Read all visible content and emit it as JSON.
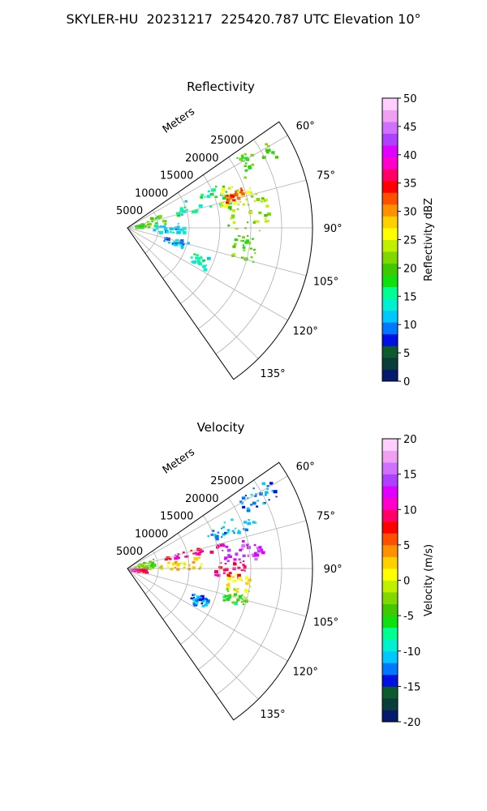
{
  "title": "SKYLER-HU  20231217  225420.787 UTC Elevation 10°",
  "chart_data": [
    {
      "type": "heatmap",
      "subtype": "polar-sector-radar-ppi",
      "title": "Reflectivity",
      "radial_label": "Meters",
      "range_ticks": [
        5000,
        10000,
        15000,
        20000,
        25000
      ],
      "range_max": 30000,
      "azimuth_ticks": [
        "60°",
        "75°",
        "90°",
        "105°",
        "120°",
        "135°"
      ],
      "azimuth_range": [
        55,
        145
      ],
      "colorbar": {
        "label": "Reflectivity dBZ",
        "min": 0,
        "max": 50,
        "ticks": [
          0,
          5,
          10,
          15,
          20,
          25,
          30,
          35,
          40,
          45,
          50
        ],
        "colors": [
          "#061a6b",
          "#0a3d3a",
          "#0c5a2e",
          "#0010e0",
          "#0077ff",
          "#00c8ff",
          "#00f0d0",
          "#00ff90",
          "#10e010",
          "#40c800",
          "#80d800",
          "#c0f000",
          "#ffff00",
          "#ffd000",
          "#ff9000",
          "#ff5000",
          "#ff0000",
          "#ff0066",
          "#ff00cc",
          "#e000ff",
          "#b040ff",
          "#d070ff",
          "#f0a0f0",
          "#ffd0ff"
        ]
      },
      "echoes": [
        {
          "az_from": 57,
          "az_to": 64,
          "r_from": 21000,
          "r_to": 27000,
          "value": 20
        },
        {
          "az_from": 64,
          "az_to": 76,
          "r_from": 8000,
          "r_to": 17000,
          "value": 15
        },
        {
          "az_from": 66,
          "az_to": 77,
          "r_from": 15000,
          "r_to": 22000,
          "value": 24
        },
        {
          "az_from": 70,
          "az_to": 75,
          "r_from": 16500,
          "r_to": 19500,
          "value": 32
        },
        {
          "az_from": 77,
          "az_to": 91,
          "r_from": 16000,
          "r_to": 23000,
          "value": 22
        },
        {
          "az_from": 63,
          "az_to": 85,
          "r_from": 1000,
          "r_to": 6000,
          "value": 19
        },
        {
          "az_from": 84,
          "az_to": 96,
          "r_from": 4000,
          "r_to": 9000,
          "value": 12
        },
        {
          "az_from": 93,
          "az_to": 105,
          "r_from": 17000,
          "r_to": 21000,
          "value": 20
        },
        {
          "az_from": 102,
          "az_to": 110,
          "r_from": 6000,
          "r_to": 10000,
          "value": 10
        },
        {
          "az_from": 110,
          "az_to": 118,
          "r_from": 11000,
          "r_to": 14000,
          "value": 14
        }
      ]
    },
    {
      "type": "heatmap",
      "subtype": "polar-sector-radar-ppi",
      "title": "Velocity",
      "radial_label": "Meters",
      "range_ticks": [
        5000,
        10000,
        15000,
        20000,
        25000
      ],
      "range_max": 30000,
      "azimuth_ticks": [
        "60°",
        "75°",
        "90°",
        "105°",
        "120°",
        "135°"
      ],
      "azimuth_range": [
        55,
        145
      ],
      "colorbar": {
        "label": "Velocity (m/s)",
        "min": -20,
        "max": 20,
        "ticks": [
          -20,
          -15,
          -10,
          -5,
          0,
          5,
          10,
          15,
          20
        ],
        "colors": [
          "#061a6b",
          "#0a3d3a",
          "#0c5a2e",
          "#0010e0",
          "#0077ff",
          "#00c8ff",
          "#00f0d0",
          "#00ff90",
          "#10e010",
          "#40c800",
          "#80d800",
          "#c0f000",
          "#ffff00",
          "#ffd000",
          "#ff9000",
          "#ff5000",
          "#ff0000",
          "#ff0066",
          "#ff00cc",
          "#e000ff",
          "#b040ff",
          "#d070ff",
          "#f0a0f0",
          "#ffd0ff"
        ]
      },
      "echoes": [
        {
          "az_from": 57,
          "az_to": 64,
          "r_from": 21000,
          "r_to": 27000,
          "value": -12
        },
        {
          "az_from": 64,
          "az_to": 72,
          "r_from": 14000,
          "r_to": 22000,
          "value": -11
        },
        {
          "az_from": 72,
          "az_to": 78,
          "r_from": 6000,
          "r_to": 16000,
          "value": 10
        },
        {
          "az_from": 76,
          "az_to": 86,
          "r_from": 15000,
          "r_to": 22000,
          "value": 14
        },
        {
          "az_from": 80,
          "az_to": 90,
          "r_from": 5000,
          "r_to": 12000,
          "value": 2
        },
        {
          "az_from": 86,
          "az_to": 94,
          "r_from": 13000,
          "r_to": 19000,
          "value": 9
        },
        {
          "az_from": 66,
          "az_to": 88,
          "r_from": 1000,
          "r_to": 5000,
          "value": -3
        },
        {
          "az_from": 88,
          "az_to": 100,
          "r_from": 0,
          "r_to": 3000,
          "value": 10
        },
        {
          "az_from": 92,
          "az_to": 104,
          "r_from": 16000,
          "r_to": 20000,
          "value": 1
        },
        {
          "az_from": 100,
          "az_to": 108,
          "r_from": 16000,
          "r_to": 20000,
          "value": -5
        },
        {
          "az_from": 110,
          "az_to": 118,
          "r_from": 11000,
          "r_to": 14000,
          "value": -12
        }
      ]
    }
  ]
}
